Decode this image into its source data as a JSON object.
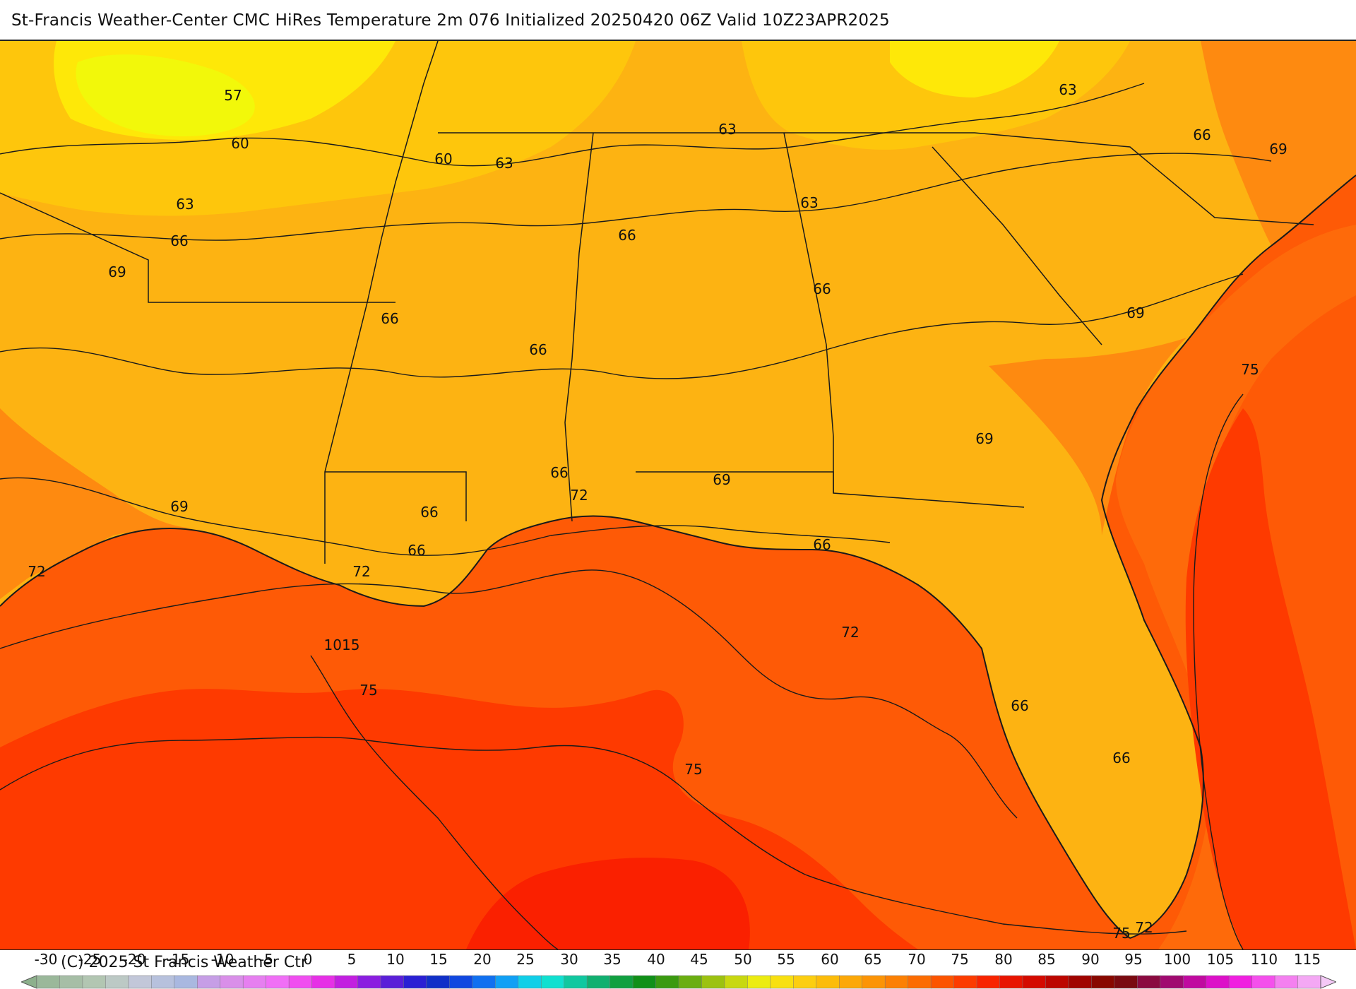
{
  "title": "St-Francis Weather-Center CMC HiRes Temperature 2m  076 Initialized 20250420 06Z Valid 10Z23APR2025",
  "copyright": "(C) 2025 St Francis Weather Ctr",
  "contour_labels": [
    {
      "text": "57"
    },
    {
      "text": "60"
    },
    {
      "text": "60"
    },
    {
      "text": "63"
    },
    {
      "text": "63"
    },
    {
      "text": "63"
    },
    {
      "text": "63"
    },
    {
      "text": "63"
    },
    {
      "text": "66"
    },
    {
      "text": "66"
    },
    {
      "text": "69"
    },
    {
      "text": "66"
    },
    {
      "text": "66"
    },
    {
      "text": "66"
    },
    {
      "text": "66"
    },
    {
      "text": "69"
    },
    {
      "text": "69"
    },
    {
      "text": "69"
    },
    {
      "text": "66"
    },
    {
      "text": "72"
    },
    {
      "text": "69"
    },
    {
      "text": "66"
    },
    {
      "text": "72"
    },
    {
      "text": "66"
    },
    {
      "text": "72"
    },
    {
      "text": "1015"
    },
    {
      "text": "75"
    },
    {
      "text": "75"
    },
    {
      "text": "72"
    },
    {
      "text": "75"
    },
    {
      "text": "66"
    },
    {
      "text": "66"
    },
    {
      "text": "75"
    },
    {
      "text": "72"
    },
    {
      "text": "66"
    },
    {
      "text": "69"
    }
  ],
  "scale": {
    "labels": [
      "-30",
      "-25",
      "-20",
      "-15",
      "-10",
      "-5",
      "0",
      "5",
      "10",
      "15",
      "20",
      "25",
      "30",
      "35",
      "40",
      "45",
      "50",
      "55",
      "60",
      "65",
      "70",
      "75",
      "80",
      "85",
      "90",
      "95",
      "100",
      "105",
      "110",
      "115"
    ],
    "colors": [
      "#8db08c",
      "#9ab89a",
      "#a6bea6",
      "#b2c6b2",
      "#bcc9c5",
      "#c2c7d9",
      "#b7c1dd",
      "#a9b8e0",
      "#c69ee6",
      "#d98fe9",
      "#e67ff0",
      "#f06ff6",
      "#f04ef0",
      "#e630e6",
      "#c21fe0",
      "#8a1ee0",
      "#5a1fd8",
      "#2a20d4",
      "#1030c8",
      "#1048e0",
      "#1070f0",
      "#10a0f5",
      "#10cfe8",
      "#10e0d0",
      "#10c8a0",
      "#10b070",
      "#10a040",
      "#109018",
      "#3a9a10",
      "#6aae10",
      "#9cc210",
      "#c8d810",
      "#ecec10",
      "#f8e010",
      "#fcce10",
      "#fcbc0a",
      "#fca808",
      "#fc9406",
      "#fc8004",
      "#fc6c02",
      "#fc5400",
      "#fc3c00",
      "#f82400",
      "#e81400",
      "#d40a00",
      "#bc0600",
      "#a00400",
      "#880800",
      "#7a0a10",
      "#8a0a40",
      "#a00a70",
      "#c00aa0",
      "#dc10c8",
      "#f020e0",
      "#f450ec",
      "#f480f0",
      "#f4a8f4",
      "#f4c8f6"
    ]
  },
  "colors": {
    "contour": "#1a1a1a",
    "county": "#5a3a10",
    "gulf_warm": "#fe5a06",
    "gulf_hot": "#fe3a00",
    "gulf_core": "#fa2000",
    "coastal": "#fe8a10",
    "land": "#fdb312",
    "land_cool": "#fec60c",
    "land_cold": "#fee808",
    "land_coldest": "#f2f80a",
    "atlantic_mid": "#fe6a0a"
  }
}
